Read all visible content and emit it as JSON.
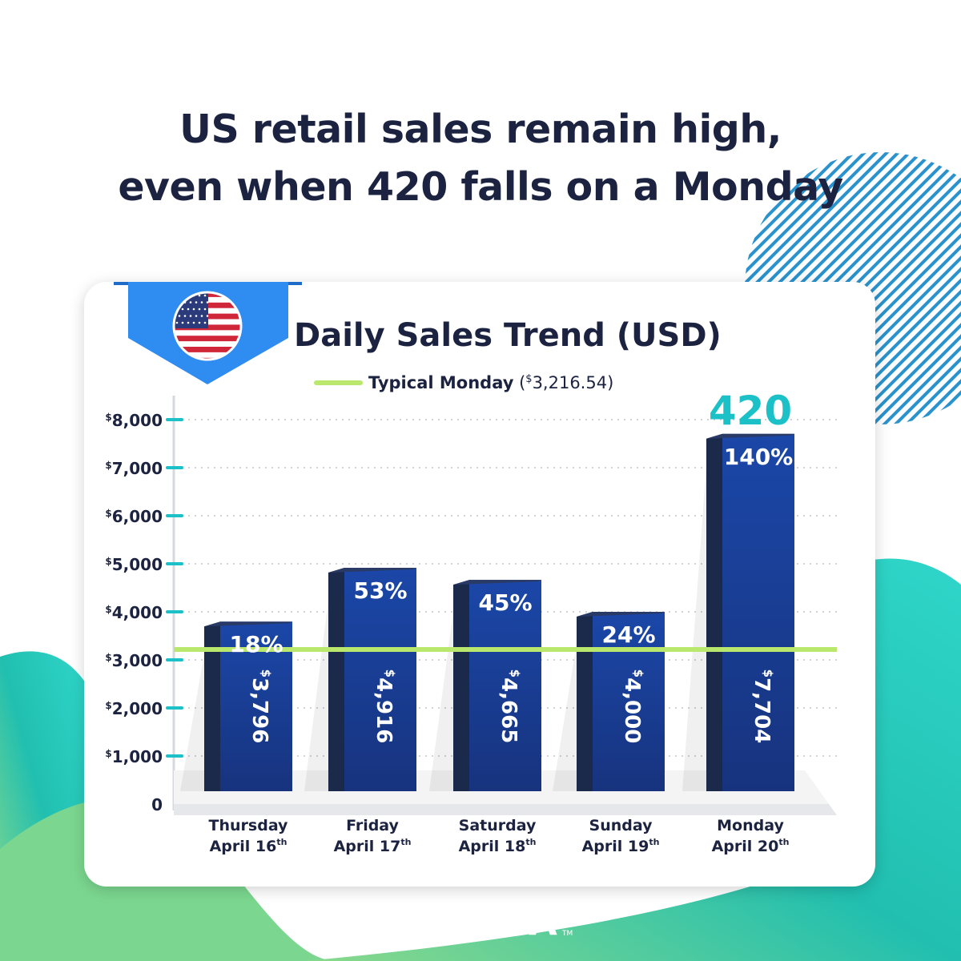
{
  "headline": {
    "line1": "US retail sales remain high,",
    "line2": "even when 420 falls on a Monday"
  },
  "flag": {
    "icon": "us-flag-icon"
  },
  "legend": {
    "label": "Typical Monday",
    "value_prefix": " (",
    "value_currency": "$",
    "value": "3,216.54",
    "value_suffix": ")"
  },
  "logo": {
    "text": "COVA",
    "tm": "TM",
    "icon": "cova-molecule-icon"
  },
  "colors": {
    "title": "#1c2340",
    "bar_front": "#1a3d96",
    "bar_side": "#1b2a4a",
    "baseline": "#b9e86c",
    "accent": "#1bc1c6",
    "ribbon": "#2f8cf0"
  },
  "chart_data": {
    "type": "bar",
    "title": "Daily Sales Trend (USD)",
    "categories": [
      {
        "line1": "Thursday",
        "line2": "April 16",
        "sup": "th"
      },
      {
        "line1": "Friday",
        "line2": "April 17",
        "sup": "th"
      },
      {
        "line1": "Saturday",
        "line2": "April 18",
        "sup": "th"
      },
      {
        "line1": "Sunday",
        "line2": "April 19",
        "sup": "th"
      },
      {
        "line1": "Monday",
        "line2": "April 20",
        "sup": "th"
      }
    ],
    "values": [
      3796,
      4916,
      4665,
      4000,
      7704
    ],
    "value_labels": [
      "3,796",
      "4,916",
      "4,665",
      "4,000",
      "7,704"
    ],
    "pct_labels": [
      "18%",
      "53%",
      "45%",
      "24%",
      "140%"
    ],
    "baseline": 3216.54,
    "highlight": {
      "index": 4,
      "label": "420"
    },
    "ylim": [
      0,
      8000
    ],
    "yticks": [
      {
        "value": 0,
        "currency": "",
        "label": "0"
      },
      {
        "value": 1000,
        "currency": "$",
        "label": "1,000"
      },
      {
        "value": 2000,
        "currency": "$",
        "label": "2,000"
      },
      {
        "value": 3000,
        "currency": "$",
        "label": "3,000"
      },
      {
        "value": 4000,
        "currency": "$",
        "label": "4,000"
      },
      {
        "value": 5000,
        "currency": "$",
        "label": "5,000"
      },
      {
        "value": 6000,
        "currency": "$",
        "label": "6,000"
      },
      {
        "value": 7000,
        "currency": "$",
        "label": "7,000"
      },
      {
        "value": 8000,
        "currency": "$",
        "label": "8,000"
      }
    ],
    "grid": true
  }
}
